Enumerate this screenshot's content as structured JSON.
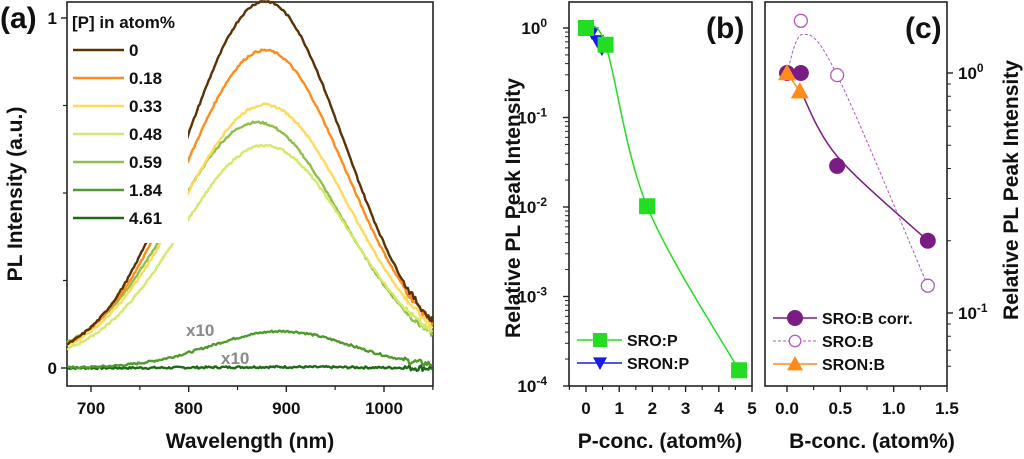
{
  "chart_data": [
    {
      "panel": "a",
      "type": "line",
      "panel_label": "(a)",
      "xlabel": "Wavelength (nm)",
      "ylabel": "PL Intensity (a.u.)",
      "xlim": [
        675,
        1050
      ],
      "ylim": [
        0,
        1
      ],
      "xticks": [
        700,
        800,
        900,
        1000
      ],
      "yticks": [
        {
          "value": 0,
          "label": "0"
        },
        {
          "value": 1,
          "label": "1"
        }
      ],
      "legend_title": "[P] in atom%",
      "legend_placement": "top-left",
      "series": [
        {
          "name": "0",
          "color": "#5a3206",
          "peak_nm": 878,
          "peak": 1.0,
          "fwhm_nm": 190,
          "baseline": 0.08
        },
        {
          "name": "0.18",
          "color": "#ff8c1a",
          "peak_nm": 878,
          "peak": 0.86,
          "fwhm_nm": 195,
          "baseline": 0.08
        },
        {
          "name": "0.33",
          "color": "#ffd95a",
          "peak_nm": 878,
          "peak": 0.71,
          "fwhm_nm": 200,
          "baseline": 0.07
        },
        {
          "name": "0.48",
          "color": "#d4e86a",
          "peak_nm": 878,
          "peak": 0.6,
          "fwhm_nm": 200,
          "baseline": 0.06
        },
        {
          "name": "0.59",
          "color": "#8fbf4a",
          "peak_nm": 870,
          "peak": 0.66,
          "fwhm_nm": 200,
          "baseline": 0.07
        },
        {
          "name": "1.84",
          "color": "#4f9a2c",
          "peak_nm": 895,
          "peak": 0.105,
          "fwhm_nm": 170,
          "baseline": 0.0,
          "annotation": "x10"
        },
        {
          "name": "4.61",
          "color": "#1a6b12",
          "peak_nm": 895,
          "peak": 0.003,
          "fwhm_nm": 170,
          "baseline": 0.0,
          "annotation": "x10"
        }
      ],
      "annotations": [
        "x10",
        "x10"
      ]
    },
    {
      "panel": "b",
      "type": "scatter",
      "panel_label": "(b)",
      "xlabel": "P-conc. (atom%)",
      "ylabel": "Relative PL Peak Intensity",
      "yscale": "log",
      "xlim": [
        -0.5,
        5
      ],
      "ylim": [
        0.0001,
        2
      ],
      "xticks": [
        0,
        1,
        2,
        3,
        4,
        5
      ],
      "yticks": [
        {
          "value": 1,
          "base": "10",
          "exp": "0"
        },
        {
          "value": 0.1,
          "base": "10",
          "exp": "-1"
        },
        {
          "value": 0.01,
          "base": "10",
          "exp": "-2"
        },
        {
          "value": 0.001,
          "base": "10",
          "exp": "-3"
        },
        {
          "value": 0.0001,
          "base": "10",
          "exp": "-4"
        }
      ],
      "legend_placement": "bottom-left",
      "series": [
        {
          "name": "SRO:P",
          "color": "#22dd22",
          "marker": "square",
          "line": "solid",
          "x": [
            0,
            0.59,
            1.84,
            4.61
          ],
          "y": [
            1.0,
            0.65,
            0.0102,
            0.00015
          ]
        },
        {
          "name": "SRON:P",
          "color": "#1a1aee",
          "marker": "triangle-down",
          "line": "solid",
          "x": [
            0,
            0.18,
            0.33,
            0.48
          ],
          "y": [
            1.0,
            0.88,
            0.72,
            0.58
          ]
        }
      ]
    },
    {
      "panel": "c",
      "type": "scatter",
      "panel_label": "(c)",
      "xlabel": "B-conc. (atom%)",
      "ylabel": "Relative PL Peak Intensity",
      "yscale": "log",
      "yaxis_side": "right",
      "xlim": [
        -0.2,
        1.5
      ],
      "ylim": [
        0.05,
        2.0
      ],
      "xticks": [
        {
          "value": 0.0,
          "label": "0.0"
        },
        {
          "value": 0.5,
          "label": "0.5"
        },
        {
          "value": 1.0,
          "label": "1.0"
        },
        {
          "value": 1.5,
          "label": "1.5"
        }
      ],
      "yticks": [
        {
          "value": 1,
          "base": "10",
          "exp": "0"
        },
        {
          "value": 0.1,
          "base": "10",
          "exp": "-1"
        }
      ],
      "legend_placement": "bottom-left",
      "series": [
        {
          "name": "SRO:B corr.",
          "color": "#7b1c84",
          "marker": "circle-filled",
          "line": "solid",
          "x": [
            0,
            0.13,
            0.47,
            1.32
          ],
          "y": [
            1.0,
            1.0,
            0.41,
            0.2
          ]
        },
        {
          "name": "SRO:B",
          "color": "#b05ab8",
          "marker": "circle-open",
          "line": "dashed",
          "x": [
            0,
            0.13,
            0.47,
            1.32
          ],
          "y": [
            1.0,
            1.65,
            0.98,
            0.13
          ]
        },
        {
          "name": "SRON:B",
          "color": "#ff8c1a",
          "marker": "triangle-up",
          "line": "solid",
          "x": [
            0,
            0.12
          ],
          "y": [
            1.0,
            0.84
          ]
        }
      ]
    }
  ]
}
